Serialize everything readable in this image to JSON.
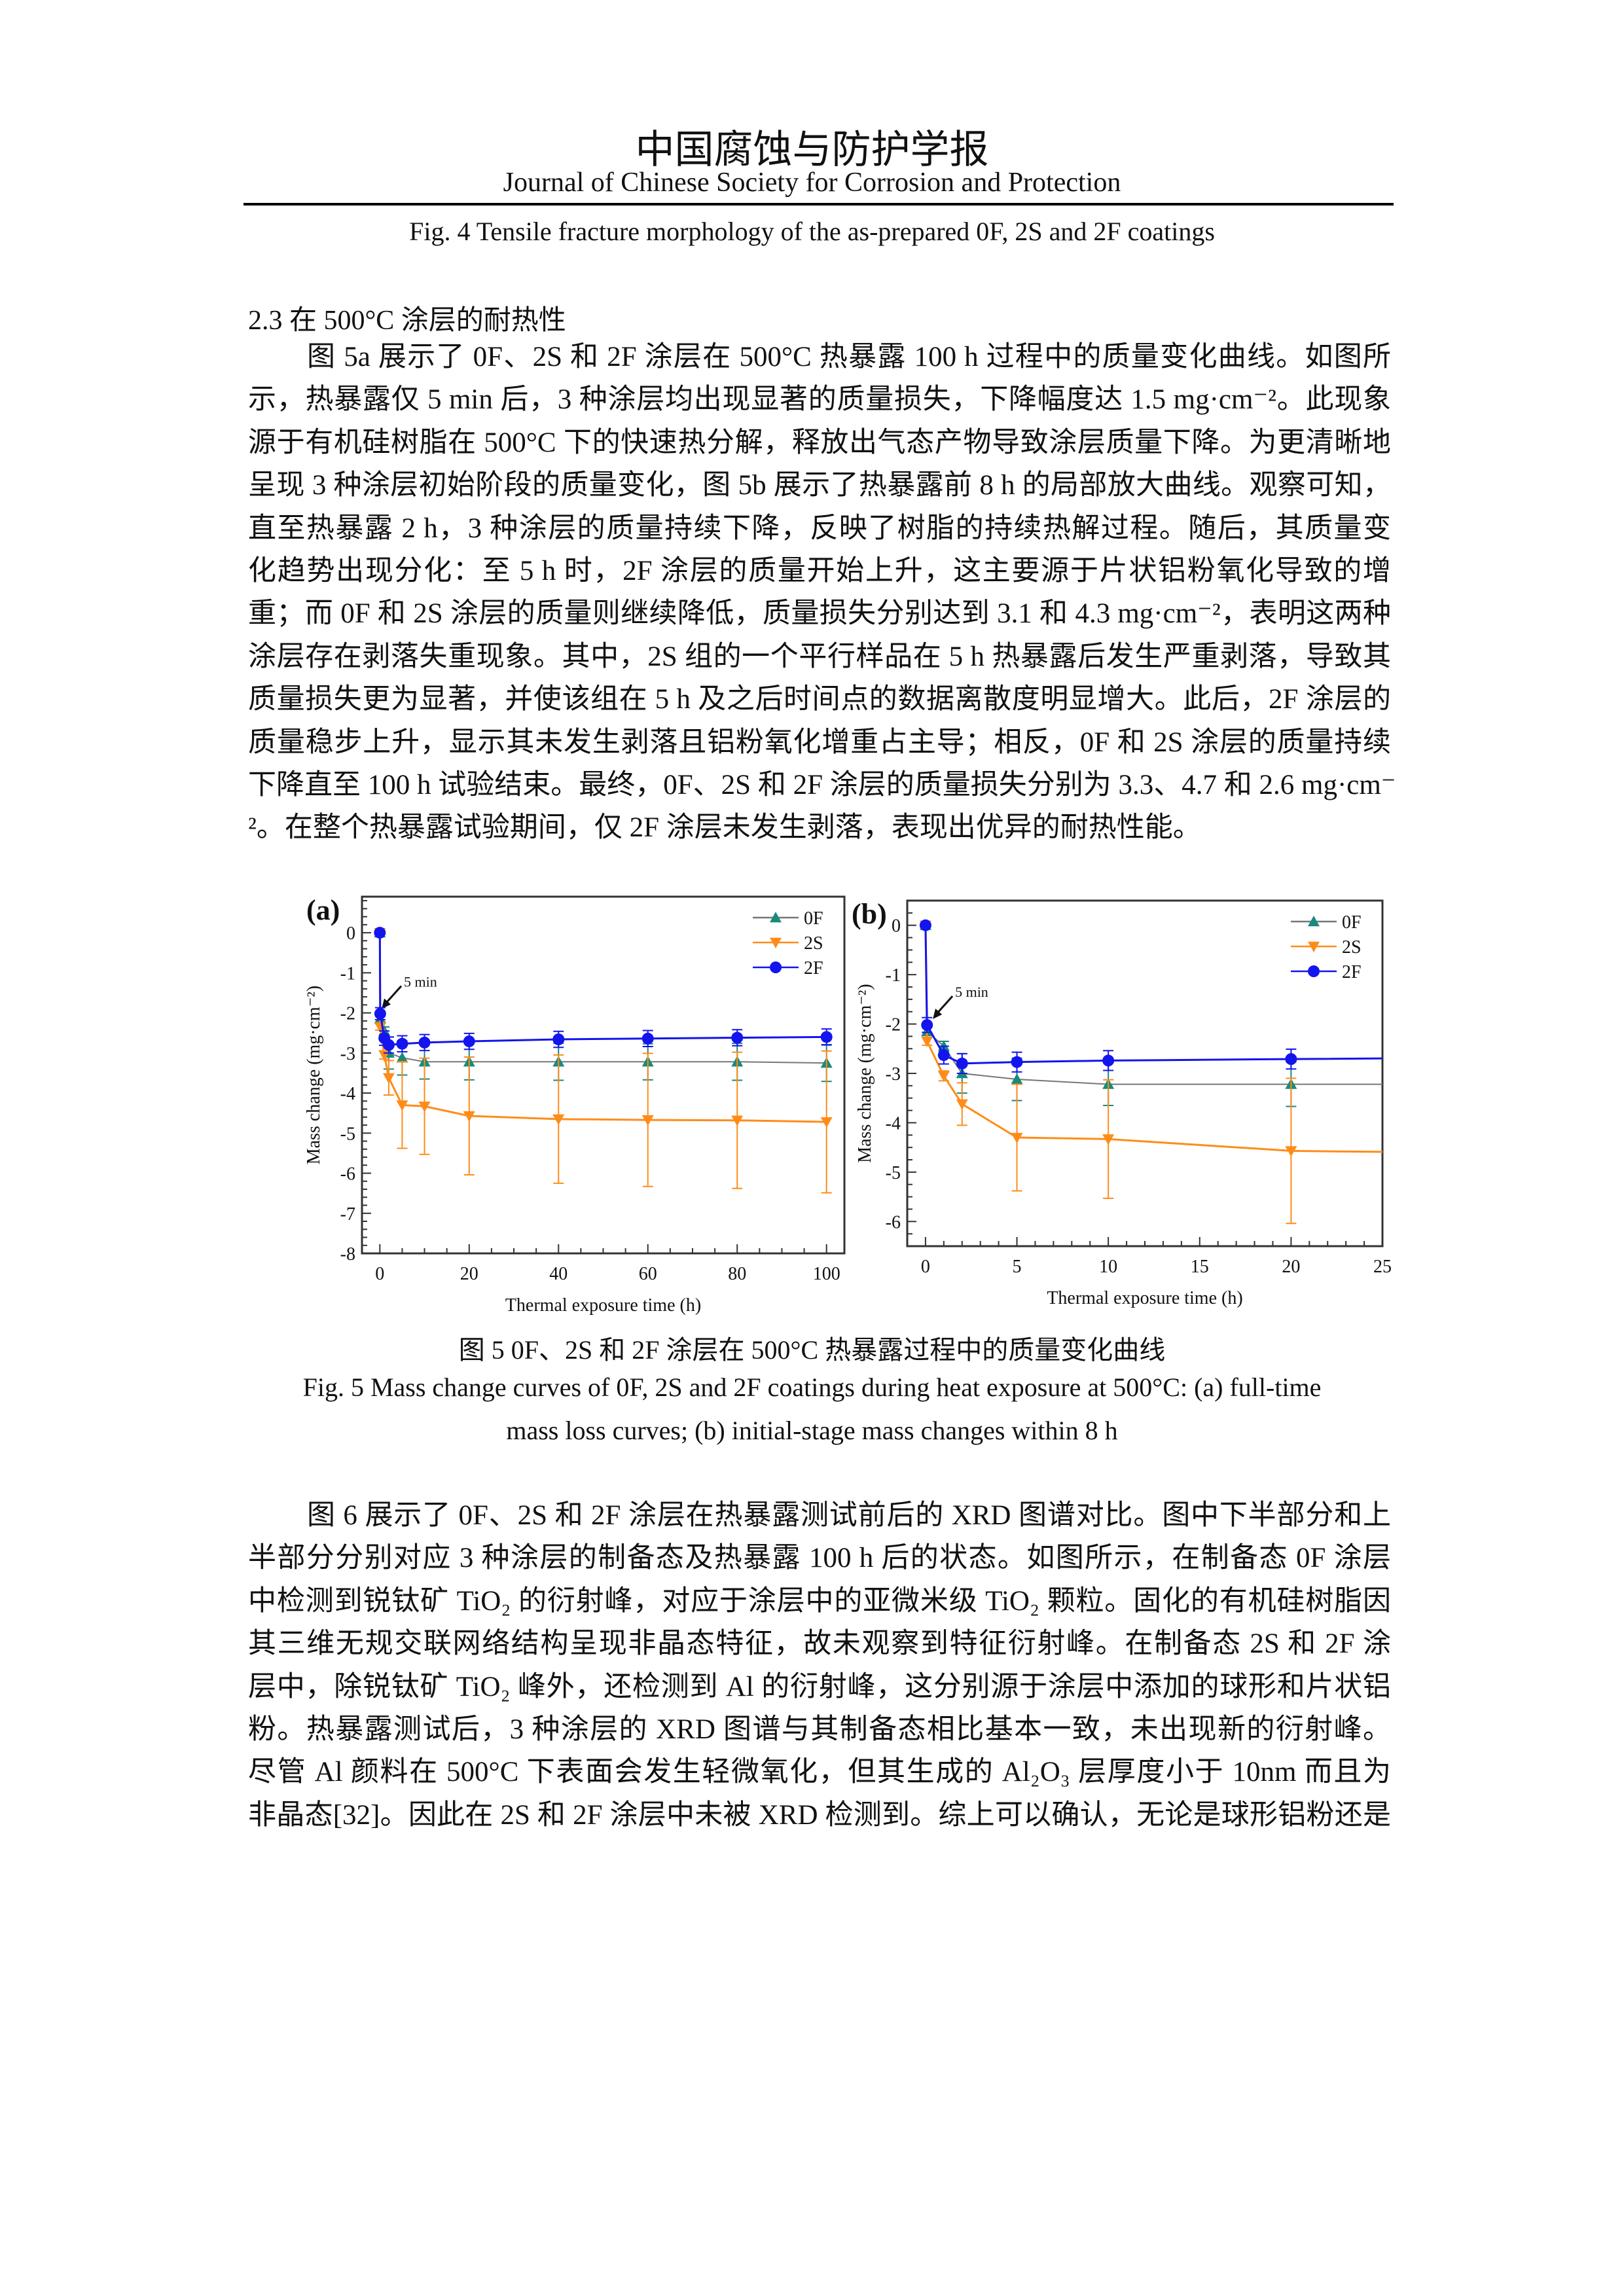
{
  "header": {
    "journal_cn": "中国腐蚀与防护学报",
    "journal_en": "Journal of Chinese Society for Corrosion and Protection"
  },
  "fig4_caption": "Fig. 4 Tensile fracture morphology of the as-prepared 0F, 2S and 2F coatings",
  "section_heading": "2.3 在 500°C 涂层的耐热性",
  "paragraph1": [
    "图 5a 展示了 0F、2S 和 2F 涂层在 500°C 热暴露 100 h 过程中的质量变化曲线。如图所",
    "示，热暴露仅 5 min 后，3 种涂层均出现显著的质量损失，下降幅度达 1.5 mg·cm⁻²。此现象",
    "源于有机硅树脂在 500°C 下的快速热分解，释放出气态产物导致涂层质量下降。为更清晰地",
    "呈现 3 种涂层初始阶段的质量变化，图 5b 展示了热暴露前 8 h 的局部放大曲线。观察可知，",
    "直至热暴露 2 h，3 种涂层的质量持续下降，反映了树脂的持续热解过程。随后，其质量变",
    "化趋势出现分化：至 5 h 时，2F 涂层的质量开始上升，这主要源于片状铝粉氧化导致的增",
    "重；而 0F 和 2S 涂层的质量则继续降低，质量损失分别达到 3.1 和 4.3 mg·cm⁻²，表明这两种",
    "涂层存在剥落失重现象。其中，2S 组的一个平行样品在 5 h 热暴露后发生严重剥落，导致其",
    "质量损失更为显著，并使该组在 5 h 及之后时间点的数据离散度明显增大。此后，2F 涂层的",
    "质量稳步上升，显示其未发生剥落且铝粉氧化增重占主导；相反，0F 和 2S 涂层的质量持续",
    "下降直至 100 h 试验结束。最终，0F、2S 和 2F 涂层的质量损失分别为 3.3、4.7 和 2.6 mg·cm⁻",
    "²。在整个热暴露试验期间，仅 2F 涂层未发生剥落，表现出优异的耐热性能。"
  ],
  "fig5_caption": {
    "cn": "图 5 0F、2S 和 2F 涂层在 500°C 热暴露过程中的质量变化曲线",
    "en_line1": "Fig. 5 Mass change curves of 0F, 2S and 2F coatings during heat exposure at 500°C: (a) full-time",
    "en_line2": "mass loss curves; (b) initial-stage mass changes within 8 h"
  },
  "paragraph2": [
    "图 6 展示了 0F、2S 和 2F 涂层在热暴露测试前后的 XRD 图谱对比。图中下半部分和上",
    "半部分分别对应 3 种涂层的制备态及热暴露 100 h 后的状态。如图所示，在制备态 0F 涂层",
    "中检测到锐钛矿 TiO₂ 的衍射峰，对应于涂层中的亚微米级 TiO₂ 颗粒。固化的有机硅树脂因",
    "其三维无规交联网络结构呈现非晶态特征，故未观察到特征衍射峰。在制备态 2S 和 2F 涂",
    "层中，除锐钛矿 TiO₂ 峰外，还检测到 Al 的衍射峰，这分别源于涂层中添加的球形和片状铝",
    "粉。热暴露测试后，3 种涂层的 XRD 图谱与其制备态相比基本一致，未出现新的衍射峰。",
    "尽管 Al 颜料在 500°C 下表面会发生轻微氧化，但其生成的 Al₂O₃ 层厚度小于 10nm 而且为",
    "非晶态[32]。因此在 2S 和 2F 涂层中未被 XRD 检测到。综上可以确认，无论是球形铝粉还是"
  ],
  "chart_data": [
    {
      "type": "line",
      "panel_label": "(a)",
      "xlabel": "Thermal exposure time (h)",
      "ylabel": "Mass change (mg·cm⁻²)",
      "xlim": [
        -4,
        104
      ],
      "ylim": [
        -8,
        0.9
      ],
      "xticks": [
        0,
        20,
        40,
        60,
        80,
        100
      ],
      "yticks": [
        0,
        -1,
        -2,
        -3,
        -4,
        -5,
        -6,
        -7,
        -8
      ],
      "annotation": "5 min",
      "legend_position": "top-right",
      "grid": false,
      "x": [
        0,
        0.083,
        1,
        2,
        5,
        10,
        20,
        40,
        60,
        80,
        100
      ],
      "series": [
        {
          "name": "0F",
          "color": "#1a8a7a",
          "line_color": "#777777",
          "marker": "triangle-up",
          "values": [
            0,
            -2.15,
            -2.45,
            -3.0,
            -3.12,
            -3.22,
            -3.22,
            -3.22,
            -3.22,
            -3.22,
            -3.25
          ],
          "errors": [
            0,
            0.08,
            0.1,
            0.4,
            0.43,
            0.43,
            0.45,
            0.46,
            0.45,
            0.46,
            0.46
          ]
        },
        {
          "name": "2S",
          "color": "#ff8c1a",
          "line_color": "#ff8c1a",
          "marker": "triangle-down",
          "values": [
            0,
            -2.35,
            -3.05,
            -3.62,
            -4.3,
            -4.33,
            -4.57,
            -4.65,
            -4.67,
            -4.68,
            -4.72
          ],
          "errors": [
            0,
            0.08,
            0.1,
            0.43,
            1.08,
            1.2,
            1.47,
            1.6,
            1.66,
            1.7,
            1.77
          ]
        },
        {
          "name": "2F",
          "color": "#1414ee",
          "line_color": "#1414ee",
          "marker": "circle",
          "values": [
            0,
            -2.02,
            -2.63,
            -2.8,
            -2.77,
            -2.74,
            -2.71,
            -2.66,
            -2.64,
            -2.62,
            -2.6
          ],
          "errors": [
            0,
            0.15,
            0.18,
            0.2,
            0.2,
            0.2,
            0.2,
            0.2,
            0.2,
            0.2,
            0.2
          ]
        }
      ]
    },
    {
      "type": "line",
      "panel_label": "(b)",
      "xlabel": "Thermal exposure time (h)",
      "ylabel": "Mass change (mg·cm⁻²)",
      "xlim": [
        -1,
        25
      ],
      "ylim": [
        -6.5,
        0.5
      ],
      "xticks": [
        0,
        5,
        10,
        15,
        20,
        25
      ],
      "yticks": [
        0,
        -1,
        -2,
        -3,
        -4,
        -5,
        -6
      ],
      "annotation": "5 min",
      "legend_position": "top-right",
      "grid": false,
      "x": [
        0,
        0.083,
        1,
        2,
        5,
        10,
        20,
        40
      ],
      "series": [
        {
          "name": "0F",
          "color": "#1a8a7a",
          "line_color": "#777777",
          "marker": "triangle-up",
          "values": [
            0,
            -2.15,
            -2.45,
            -3.0,
            -3.12,
            -3.22,
            -3.22,
            -3.22
          ],
          "errors": [
            0,
            0.08,
            0.1,
            0.4,
            0.43,
            0.43,
            0.45,
            0.46
          ]
        },
        {
          "name": "2S",
          "color": "#ff8c1a",
          "line_color": "#ff8c1a",
          "marker": "triangle-down",
          "values": [
            0,
            -2.35,
            -3.05,
            -3.62,
            -4.3,
            -4.33,
            -4.57,
            -4.65
          ],
          "errors": [
            0,
            0.08,
            0.1,
            0.43,
            1.08,
            1.2,
            1.47,
            1.6
          ]
        },
        {
          "name": "2F",
          "color": "#1414ee",
          "line_color": "#1414ee",
          "marker": "circle",
          "values": [
            0,
            -2.02,
            -2.63,
            -2.8,
            -2.77,
            -2.74,
            -2.71,
            -2.66
          ],
          "errors": [
            0,
            0.15,
            0.18,
            0.2,
            0.2,
            0.2,
            0.2,
            0.2
          ]
        }
      ]
    }
  ]
}
